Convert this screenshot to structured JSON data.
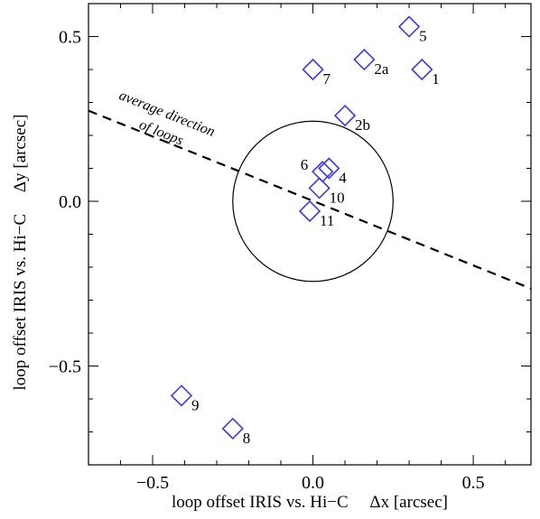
{
  "chart_data": {
    "type": "scatter",
    "xlabel": "loop offset IRIS vs. Hi−C     Δx [arcsec]",
    "ylabel": "loop offset IRIS vs. Hi−C     Δy [arcsec]",
    "xlim": [
      -0.7,
      0.68
    ],
    "ylim": [
      -0.8,
      0.6
    ],
    "xticks": [
      -0.5,
      0.0,
      0.5
    ],
    "yticks": [
      -0.5,
      0.0,
      0.5
    ],
    "xtick_labels": [
      "−0.5",
      "0.0",
      "0.5"
    ],
    "ytick_labels": [
      "−0.5",
      "0.0",
      "0.5"
    ],
    "grid": false,
    "marker_color": "#3b3bdc",
    "points": [
      {
        "label": "1",
        "x": 0.34,
        "y": 0.4
      },
      {
        "label": "2a",
        "x": 0.16,
        "y": 0.43
      },
      {
        "label": "2b",
        "x": 0.1,
        "y": 0.26
      },
      {
        "label": "4",
        "x": 0.05,
        "y": 0.1
      },
      {
        "label": "5",
        "x": 0.3,
        "y": 0.53
      },
      {
        "label": "6",
        "x": 0.03,
        "y": 0.09
      },
      {
        "label": "7",
        "x": 0.0,
        "y": 0.4
      },
      {
        "label": "8",
        "x": -0.25,
        "y": -0.69
      },
      {
        "label": "9",
        "x": -0.41,
        "y": -0.59
      },
      {
        "label": "10",
        "x": 0.02,
        "y": 0.04
      },
      {
        "label": "11",
        "x": -0.01,
        "y": -0.03
      }
    ],
    "circle": {
      "cx": 0.0,
      "cy": 0.0,
      "r": 0.25
    },
    "direction_line": {
      "x1": -0.7,
      "y1": 0.275,
      "x2": 0.68,
      "y2": -0.265
    },
    "annotation_lines": [
      "average direction",
      "of loops"
    ]
  }
}
